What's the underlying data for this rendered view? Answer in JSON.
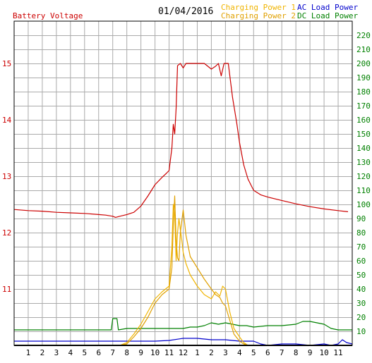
{
  "header": {
    "left_axis_title": "Battery Voltage",
    "date": "01/04/2016",
    "legend": [
      {
        "label": "Charging Power 1",
        "color": "#f0b400"
      },
      {
        "label": "Charging Power 2",
        "color": "#e0a000"
      },
      {
        "label": "AC Load Power",
        "color": "#0000cc"
      },
      {
        "label": "DC Load Power",
        "color": "#008000"
      }
    ]
  },
  "colors": {
    "voltage": "#cc0000",
    "grid": "#aaaaaa",
    "right_axis": "#008000",
    "bottom_axis": "#000000"
  },
  "chart_data": {
    "type": "line",
    "x_axis": {
      "unit": "hour",
      "range": [
        0,
        24
      ],
      "tick_labels": [
        "1",
        "2",
        "3",
        "4",
        "5",
        "6",
        "7",
        "8",
        "9",
        "10",
        "11",
        "12",
        "1",
        "2",
        "3",
        "4",
        "5",
        "6",
        "7",
        "8",
        "9",
        "10",
        "11"
      ]
    },
    "y_left": {
      "label": "Battery Voltage",
      "range": [
        10.0,
        15.75
      ],
      "tick_values": [
        11,
        12,
        13,
        14,
        15
      ]
    },
    "y_right": {
      "range": [
        0,
        230
      ],
      "tick_values": [
        10,
        20,
        30,
        40,
        50,
        60,
        70,
        80,
        90,
        100,
        110,
        120,
        130,
        140,
        150,
        160,
        170,
        180,
        190,
        200,
        210,
        220
      ]
    },
    "series": [
      {
        "name": "Battery Voltage",
        "axis": "left",
        "color": "#cc0000",
        "x": [
          0,
          1,
          2,
          3,
          4,
          5,
          6,
          6.5,
          7,
          7.2,
          7.5,
          8,
          8.5,
          9,
          9.5,
          10,
          10.5,
          10.8,
          11,
          11.2,
          11.3,
          11.4,
          11.5,
          11.6,
          11.8,
          12,
          12.2,
          12.5,
          13,
          13.5,
          14,
          14.3,
          14.5,
          14.7,
          14.9,
          15,
          15.2,
          15.5,
          15.8,
          16,
          16.3,
          16.6,
          17,
          17.5,
          18,
          19,
          20,
          21,
          22,
          23,
          23.7
        ],
        "y": [
          12.41,
          12.39,
          12.38,
          12.36,
          12.35,
          12.34,
          12.32,
          12.31,
          12.29,
          12.27,
          12.29,
          12.32,
          12.36,
          12.47,
          12.65,
          12.85,
          12.98,
          13.05,
          13.1,
          13.5,
          13.92,
          13.75,
          14.2,
          14.96,
          15.0,
          14.92,
          15.0,
          15.0,
          15.0,
          15.0,
          14.9,
          14.95,
          15.0,
          14.78,
          15.0,
          15.0,
          15.0,
          14.4,
          13.95,
          13.6,
          13.2,
          12.95,
          12.75,
          12.67,
          12.63,
          12.57,
          12.51,
          12.46,
          12.42,
          12.39,
          12.37
        ]
      },
      {
        "name": "Charging Power 1",
        "axis": "right",
        "color": "#f0b400",
        "x": [
          0,
          7.5,
          8,
          8.5,
          9,
          9.5,
          10,
          10.5,
          11,
          11.2,
          11.3,
          11.4,
          11.5,
          11.6,
          11.7,
          11.8,
          11.9,
          12,
          12.2,
          12.5,
          13,
          13.5,
          14,
          14.3,
          14.6,
          14.8,
          15,
          15.3,
          15.6,
          16,
          16.3,
          16.6,
          17,
          24
        ],
        "y": [
          0,
          0,
          2,
          8,
          15,
          24,
          33,
          38,
          42,
          70,
          100,
          92,
          60,
          80,
          90,
          82,
          75,
          66,
          58,
          50,
          42,
          36,
          33,
          38,
          35,
          42,
          40,
          24,
          12,
          6,
          2,
          0,
          0,
          0
        ]
      },
      {
        "name": "Charging Power 2",
        "axis": "right",
        "color": "#e0a000",
        "x": [
          0,
          7.5,
          8,
          8.5,
          9,
          9.5,
          10,
          10.5,
          11,
          11.2,
          11.3,
          11.4,
          11.5,
          11.6,
          11.7,
          11.8,
          12,
          12.2,
          12.5,
          13,
          13.5,
          14,
          14.3,
          14.6,
          14.8,
          15,
          15.3,
          15.6,
          16,
          16.3,
          16.6,
          17,
          24
        ],
        "y": [
          0,
          0,
          1,
          6,
          12,
          20,
          30,
          36,
          40,
          55,
          85,
          106,
          75,
          62,
          60,
          80,
          96,
          78,
          63,
          55,
          47,
          40,
          36,
          34,
          30,
          28,
          18,
          8,
          3,
          1,
          0,
          0,
          0
        ]
      },
      {
        "name": "AC Load Power",
        "axis": "right",
        "color": "#0000cc",
        "x": [
          0,
          2,
          4,
          6,
          8,
          10,
          11,
          12,
          13,
          14,
          15,
          16,
          17,
          17.5,
          18,
          19,
          20,
          21,
          22,
          22.5,
          23,
          23.3,
          23.6,
          24
        ],
        "y": [
          3,
          3,
          3,
          3,
          3,
          3,
          3.5,
          5,
          5,
          4,
          4,
          3,
          3,
          1,
          0,
          1,
          1,
          0,
          1,
          0,
          1,
          4,
          2,
          1
        ]
      },
      {
        "name": "DC Load Power",
        "axis": "right",
        "color": "#008000",
        "x": [
          0,
          2,
          4,
          6,
          6.9,
          7,
          7.3,
          7.4,
          8,
          9,
          10,
          11,
          12,
          12.5,
          13,
          13.5,
          14,
          14.5,
          15,
          15.5,
          16,
          16.5,
          17,
          18,
          19,
          20,
          20.5,
          21,
          21.5,
          22,
          22.5,
          23,
          24
        ],
        "y": [
          11,
          11,
          11,
          11,
          11,
          19,
          19,
          11,
          12,
          12,
          12,
          12,
          12,
          13,
          13,
          14,
          16,
          15,
          16,
          15,
          14,
          14,
          13,
          14,
          14,
          15,
          17,
          17,
          16,
          15,
          12,
          11,
          11
        ]
      }
    ]
  }
}
